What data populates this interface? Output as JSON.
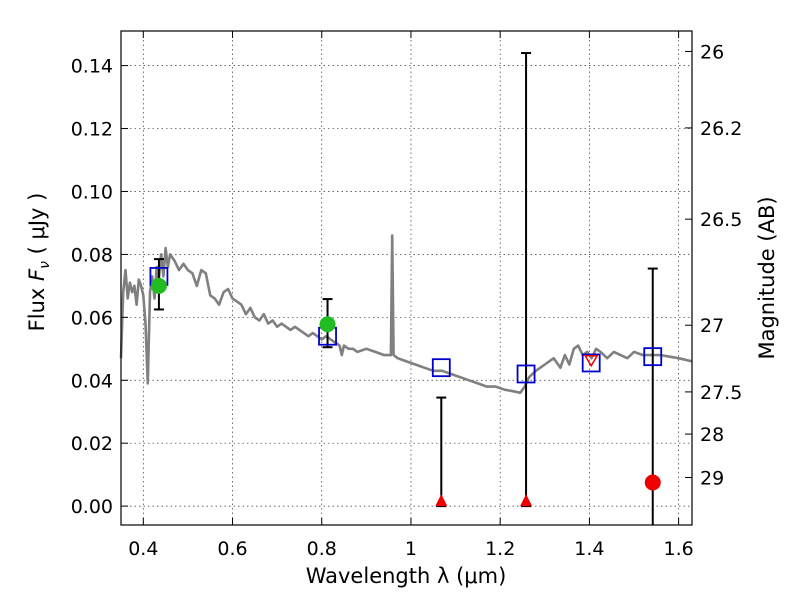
{
  "chart_data": {
    "type": "scatter",
    "xlabel": "Wavelength  λ (μm)",
    "ylabel": "Flux  F_ν  ( μJy )",
    "ylabel_parts": {
      "pre": "Flux  ",
      "sym": "F",
      "sub": "ν",
      "post": "  ( μJy )"
    },
    "y2label": "Magnitude (AB)",
    "xlim": [
      0.35,
      1.63
    ],
    "ylim": [
      -0.006,
      0.151
    ],
    "grid": true,
    "x_ticks": [
      {
        "value": 0.4,
        "label": "0.4"
      },
      {
        "value": 0.6,
        "label": "0.6"
      },
      {
        "value": 0.8,
        "label": "0.8"
      },
      {
        "value": 1.0,
        "label": "1"
      },
      {
        "value": 1.2,
        "label": "1.2"
      },
      {
        "value": 1.4,
        "label": "1.4"
      },
      {
        "value": 1.6,
        "label": "1.6"
      }
    ],
    "y_ticks": [
      {
        "value": 0.0,
        "label": "0.00"
      },
      {
        "value": 0.02,
        "label": "0.02"
      },
      {
        "value": 0.04,
        "label": "0.04"
      },
      {
        "value": 0.06,
        "label": "0.06"
      },
      {
        "value": 0.08,
        "label": "0.08"
      },
      {
        "value": 0.1,
        "label": "0.10"
      },
      {
        "value": 0.12,
        "label": "0.12"
      },
      {
        "value": 0.14,
        "label": "0.14"
      }
    ],
    "y2_ticks": [
      {
        "flux": 0.1445,
        "label": "26"
      },
      {
        "flux": 0.1202,
        "label": "26.2"
      },
      {
        "flux": 0.0912,
        "label": "26.5"
      },
      {
        "flux": 0.0575,
        "label": "27"
      },
      {
        "flux": 0.0363,
        "label": "27.5"
      },
      {
        "flux": 0.0229,
        "label": "28"
      },
      {
        "flux": 0.0091,
        "label": "29"
      }
    ],
    "colors": {
      "template": "#808080",
      "model": "#0000cc",
      "detection": "#22bb22",
      "nondetection": "#ee0000",
      "errorbar": "#000000"
    },
    "template_spectrum": [
      [
        0.35,
        0.047
      ],
      [
        0.355,
        0.068
      ],
      [
        0.36,
        0.075
      ],
      [
        0.365,
        0.066
      ],
      [
        0.37,
        0.071
      ],
      [
        0.375,
        0.068
      ],
      [
        0.38,
        0.07
      ],
      [
        0.385,
        0.064
      ],
      [
        0.39,
        0.072
      ],
      [
        0.395,
        0.07
      ],
      [
        0.4,
        0.067
      ],
      [
        0.405,
        0.058
      ],
      [
        0.41,
        0.039
      ],
      [
        0.415,
        0.068
      ],
      [
        0.42,
        0.073
      ],
      [
        0.425,
        0.066
      ],
      [
        0.43,
        0.076
      ],
      [
        0.435,
        0.072
      ],
      [
        0.44,
        0.08
      ],
      [
        0.445,
        0.073
      ],
      [
        0.45,
        0.082
      ],
      [
        0.455,
        0.076
      ],
      [
        0.46,
        0.08
      ],
      [
        0.47,
        0.078
      ],
      [
        0.48,
        0.075
      ],
      [
        0.49,
        0.077
      ],
      [
        0.5,
        0.075
      ],
      [
        0.51,
        0.074
      ],
      [
        0.52,
        0.07
      ],
      [
        0.53,
        0.075
      ],
      [
        0.54,
        0.074
      ],
      [
        0.55,
        0.067
      ],
      [
        0.56,
        0.066
      ],
      [
        0.57,
        0.064
      ],
      [
        0.58,
        0.068
      ],
      [
        0.59,
        0.069
      ],
      [
        0.6,
        0.066
      ],
      [
        0.61,
        0.065
      ],
      [
        0.62,
        0.064
      ],
      [
        0.63,
        0.061
      ],
      [
        0.64,
        0.063
      ],
      [
        0.65,
        0.06
      ],
      [
        0.66,
        0.059
      ],
      [
        0.67,
        0.061
      ],
      [
        0.68,
        0.058
      ],
      [
        0.69,
        0.059
      ],
      [
        0.7,
        0.057
      ],
      [
        0.71,
        0.058
      ],
      [
        0.72,
        0.057
      ],
      [
        0.73,
        0.056
      ],
      [
        0.74,
        0.057
      ],
      [
        0.75,
        0.056
      ],
      [
        0.76,
        0.055
      ],
      [
        0.77,
        0.054
      ],
      [
        0.78,
        0.055
      ],
      [
        0.79,
        0.054
      ],
      [
        0.8,
        0.053
      ],
      [
        0.81,
        0.054
      ],
      [
        0.82,
        0.053
      ],
      [
        0.83,
        0.052
      ],
      [
        0.84,
        0.051
      ],
      [
        0.845,
        0.048
      ],
      [
        0.85,
        0.051
      ],
      [
        0.86,
        0.05
      ],
      [
        0.87,
        0.05
      ],
      [
        0.88,
        0.049
      ],
      [
        0.9,
        0.05
      ],
      [
        0.92,
        0.049
      ],
      [
        0.94,
        0.048
      ],
      [
        0.955,
        0.048
      ],
      [
        0.958,
        0.086
      ],
      [
        0.961,
        0.048
      ],
      [
        0.97,
        0.047
      ],
      [
        0.99,
        0.046
      ],
      [
        1.01,
        0.045
      ],
      [
        1.03,
        0.044
      ],
      [
        1.05,
        0.043
      ],
      [
        1.07,
        0.043
      ],
      [
        1.09,
        0.042
      ],
      [
        1.11,
        0.041
      ],
      [
        1.13,
        0.04
      ],
      [
        1.15,
        0.039
      ],
      [
        1.17,
        0.038
      ],
      [
        1.19,
        0.038
      ],
      [
        1.21,
        0.037
      ],
      [
        1.23,
        0.0365
      ],
      [
        1.245,
        0.036
      ],
      [
        1.255,
        0.038
      ],
      [
        1.265,
        0.041
      ],
      [
        1.28,
        0.043
      ],
      [
        1.3,
        0.045
      ],
      [
        1.32,
        0.047
      ],
      [
        1.335,
        0.044
      ],
      [
        1.345,
        0.048
      ],
      [
        1.355,
        0.045
      ],
      [
        1.365,
        0.05
      ],
      [
        1.375,
        0.051
      ],
      [
        1.385,
        0.048
      ],
      [
        1.395,
        0.049
      ],
      [
        1.405,
        0.047
      ],
      [
        1.415,
        0.05
      ],
      [
        1.425,
        0.049
      ],
      [
        1.44,
        0.047
      ],
      [
        1.455,
        0.049
      ],
      [
        1.47,
        0.048
      ],
      [
        1.485,
        0.047
      ],
      [
        1.5,
        0.049
      ],
      [
        1.52,
        0.048
      ],
      [
        1.54,
        0.048
      ],
      [
        1.56,
        0.048
      ],
      [
        1.58,
        0.0475
      ],
      [
        1.6,
        0.047
      ],
      [
        1.63,
        0.046
      ]
    ],
    "model_photometry": [
      {
        "x": 0.435,
        "y": 0.073
      },
      {
        "x": 0.813,
        "y": 0.054
      },
      {
        "x": 1.068,
        "y": 0.044
      },
      {
        "x": 1.258,
        "y": 0.042
      },
      {
        "x": 1.404,
        "y": 0.0455
      },
      {
        "x": 1.542,
        "y": 0.0475
      }
    ],
    "observed_points": [
      {
        "x": 0.435,
        "y": 0.07,
        "yerr_low": 0.0625,
        "yerr_high": 0.0785,
        "detected": true,
        "marker": "circle"
      },
      {
        "x": 0.813,
        "y": 0.0578,
        "yerr_low": 0.0505,
        "yerr_high": 0.0658,
        "detected": true,
        "marker": "circle"
      },
      {
        "x": 1.068,
        "y": 0.0,
        "yerr_low": 0.0,
        "yerr_high": 0.0345,
        "detected": false,
        "marker": "triangle-up"
      },
      {
        "x": 1.258,
        "y": 0.0,
        "yerr_low": 0.0,
        "yerr_high": 0.144,
        "detected": false,
        "marker": "triangle-up"
      },
      {
        "x": 1.404,
        "y": 0.0462,
        "detected": false,
        "marker": "triangle-down"
      },
      {
        "x": 1.542,
        "y": 0.0075,
        "yerr_low": -0.006,
        "yerr_high": 0.0755,
        "detected": false,
        "marker": "circle"
      }
    ]
  }
}
